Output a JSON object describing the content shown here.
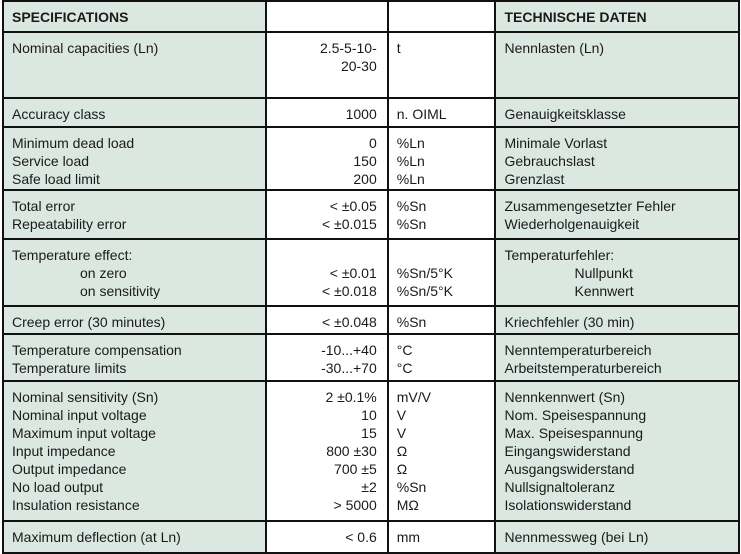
{
  "header": {
    "en": "SPECIFICATIONS",
    "value": "",
    "unit": "",
    "de": "TECHNISCHE DATEN"
  },
  "groups": [
    {
      "en": [
        "Nominal capacities (Ln)"
      ],
      "value": [
        "2.5-5-10-",
        "20-30"
      ],
      "unit": [
        "t"
      ],
      "de": [
        "Nennlasten (Ln)"
      ]
    },
    {
      "en": [
        "Accuracy class"
      ],
      "value": [
        "1000"
      ],
      "unit": [
        "n. OIML"
      ],
      "de": [
        "Genauigkeitsklasse"
      ]
    },
    {
      "en": [
        "Minimum dead load",
        "Service load",
        "Safe load limit"
      ],
      "value": [
        "0",
        "150",
        "200"
      ],
      "unit": [
        "%Ln",
        "%Ln",
        "%Ln"
      ],
      "de": [
        "Minimale Vorlast",
        "Gebrauchslast",
        "Grenzlast"
      ]
    },
    {
      "en": [
        "Total error",
        "Repeatability error"
      ],
      "value": [
        "< ±0.05",
        "< ±0.015"
      ],
      "unit": [
        "%Sn",
        "%Sn"
      ],
      "de": [
        "Zusammengesetzter Fehler",
        "Wiederholgenauigkeit"
      ]
    },
    {
      "en": [
        "Temperature effect:",
        "on zero",
        "on sensitivity"
      ],
      "value": [
        "",
        "< ±0.01",
        "< ±0.018"
      ],
      "unit": [
        "",
        "%Sn/5°K",
        "%Sn/5°K"
      ],
      "de": [
        "Temperaturfehler:",
        "Nullpunkt",
        "Kennwert"
      ]
    },
    {
      "en": [
        "Creep error (30 minutes)"
      ],
      "value": [
        "< ±0.048"
      ],
      "unit": [
        "%Sn"
      ],
      "de": [
        "Kriechfehler (30 min)"
      ]
    },
    {
      "en": [
        "Temperature compensation",
        "Temperature limits"
      ],
      "value": [
        "-10...+40",
        "-30...+70"
      ],
      "unit": [
        "°C",
        "°C"
      ],
      "de": [
        "Nenntemperaturbereich",
        "Arbeitstemperaturbereich"
      ]
    },
    {
      "en": [
        "Nominal sensitivity (Sn)",
        "Nominal input voltage",
        "Maximum input voltage",
        "Input impedance",
        "Output impedance",
        "No load output",
        "Insulation resistance"
      ],
      "value": [
        "2 ±0.1%",
        "10",
        "15",
        "800 ±30",
        "700 ±5",
        "±2",
        "> 5000"
      ],
      "unit": [
        "mV/V",
        "V",
        "V",
        "Ω",
        "Ω",
        "%Sn",
        "MΩ"
      ],
      "de": [
        "Nennkennwert (Sn)",
        "Nom. Speisespannung",
        "Max. Speisespannung",
        "Eingangswiderstand",
        "Ausgangswiderstand",
        "Nullsignaltoleranz",
        "Isolationswiderstand"
      ]
    },
    {
      "en": [
        "Maximum deflection (at Ln)"
      ],
      "value": [
        "< 0.6"
      ],
      "unit": [
        "mm"
      ],
      "de": [
        "Nennmessweg (bei Ln)"
      ]
    }
  ],
  "colors": {
    "shaded": "#dbe8e1",
    "border": "#111111"
  }
}
